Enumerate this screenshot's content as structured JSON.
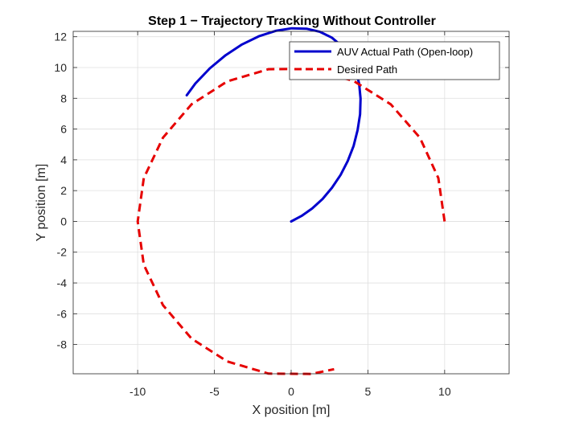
{
  "chart_data": {
    "type": "line",
    "title": "Step 1 − Trajectory Tracking Without Controller",
    "xlabel": "X position [m]",
    "ylabel": "Y position [m]",
    "xlim": [
      -14.2,
      14.2
    ],
    "ylim": [
      -9.9,
      12.35
    ],
    "xticks": [
      -10,
      -5,
      0,
      5,
      10
    ],
    "xtick_labels": [
      "-10",
      "-5",
      "0",
      "5",
      "10"
    ],
    "yticks": [
      -8,
      -6,
      -4,
      -2,
      0,
      2,
      4,
      6,
      8,
      10,
      12
    ],
    "ytick_labels": [
      "-8",
      "-6",
      "-4",
      "-2",
      "0",
      "2",
      "4",
      "6",
      "8",
      "10",
      "12"
    ],
    "grid": true,
    "legend_position": "top-right",
    "series": [
      {
        "name": "AUV Actual Path (Open-loop)",
        "color": "#0000cd",
        "style": "solid",
        "x": [
          0,
          0.68,
          1.37,
          2.05,
          2.66,
          3.22,
          3.69,
          4.07,
          4.33,
          4.49,
          4.52,
          4.43,
          4.19,
          3.82,
          3.3,
          2.65,
          1.88,
          1.0,
          0.03,
          -1.01,
          -2.1,
          -3.2,
          -4.27,
          -5.3,
          -6.24,
          -6.8
        ],
        "y": [
          0,
          0.36,
          0.84,
          1.46,
          2.19,
          3.02,
          3.93,
          4.91,
          5.93,
          6.96,
          7.98,
          8.96,
          9.87,
          10.69,
          11.39,
          11.94,
          12.32,
          12.52,
          12.55,
          12.38,
          12.03,
          11.5,
          10.8,
          9.95,
          8.96,
          8.2
        ]
      },
      {
        "name": "Desired Path",
        "color": "#e60000",
        "style": "dashed",
        "x": [
          10.0,
          9.59,
          8.39,
          6.49,
          4.07,
          1.32,
          -1.47,
          -4.16,
          -6.49,
          -8.35,
          -9.6,
          -10.0,
          -9.6,
          -8.35,
          -6.49,
          -4.16,
          -1.47,
          1.32,
          2.8
        ],
        "y": [
          0.0,
          2.82,
          5.44,
          7.61,
          9.13,
          9.91,
          9.89,
          9.1,
          7.61,
          5.44,
          2.82,
          0.0,
          -2.82,
          -5.44,
          -7.61,
          -9.1,
          -9.89,
          -9.91,
          -9.6
        ]
      }
    ]
  }
}
